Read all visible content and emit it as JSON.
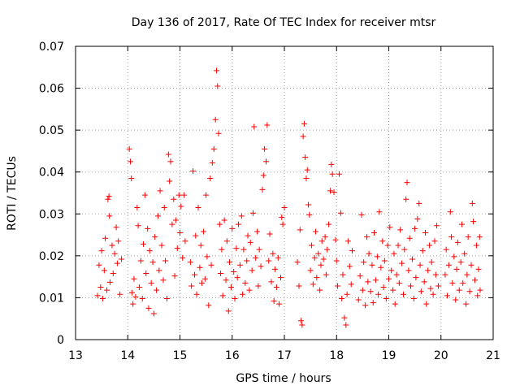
{
  "chart_data": {
    "type": "scatter",
    "title": "Day 136 of 2017, Rate Of TEC Index for receiver mtsr",
    "xlabel": "GPS time / hours",
    "ylabel": "ROTI / TECUs",
    "xlim": [
      13,
      21
    ],
    "ylim": [
      0,
      0.07
    ],
    "xticks": [
      13,
      14,
      15,
      16,
      17,
      18,
      19,
      20,
      21
    ],
    "xtick_labels": [
      "13",
      "14",
      "15",
      "16",
      "17",
      "18",
      "19",
      "20",
      "21"
    ],
    "yticks": [
      0,
      0.01,
      0.02,
      0.03,
      0.04,
      0.05,
      0.06,
      0.07
    ],
    "ytick_labels": [
      "0",
      "0.01",
      "0.02",
      "0.03",
      "0.04",
      "0.05",
      "0.06",
      "0.07"
    ],
    "grid": true,
    "marker": "+",
    "marker_color": "#ff0000",
    "series": [
      {
        "name": "ROTI",
        "points": [
          [
            13.42,
            0.0105
          ],
          [
            13.45,
            0.0178
          ],
          [
            13.48,
            0.0125
          ],
          [
            13.5,
            0.0212
          ],
          [
            13.52,
            0.0098
          ],
          [
            13.55,
            0.0165
          ],
          [
            13.57,
            0.0242
          ],
          [
            13.6,
            0.0118
          ],
          [
            13.62,
            0.0335
          ],
          [
            13.64,
            0.0342
          ],
          [
            13.65,
            0.0295
          ],
          [
            13.66,
            0.0137
          ],
          [
            13.7,
            0.0225
          ],
          [
            13.72,
            0.0158
          ],
          [
            13.75,
            0.0205
          ],
          [
            13.78,
            0.0268
          ],
          [
            13.8,
            0.0182
          ],
          [
            13.82,
            0.0235
          ],
          [
            13.85,
            0.0108
          ],
          [
            13.88,
            0.0192
          ],
          [
            14.03,
            0.0455
          ],
          [
            14.05,
            0.0425
          ],
          [
            14.07,
            0.0385
          ],
          [
            14.08,
            0.0112
          ],
          [
            14.1,
            0.0085
          ],
          [
            14.12,
            0.0145
          ],
          [
            14.15,
            0.0102
          ],
          [
            14.18,
            0.0315
          ],
          [
            14.2,
            0.0272
          ],
          [
            14.22,
            0.0125
          ],
          [
            14.25,
            0.0188
          ],
          [
            14.28,
            0.0098
          ],
          [
            14.3,
            0.0228
          ],
          [
            14.33,
            0.0345
          ],
          [
            14.35,
            0.0158
          ],
          [
            14.38,
            0.0265
          ],
          [
            14.4,
            0.0075
          ],
          [
            14.42,
            0.0212
          ],
          [
            14.45,
            0.0135
          ],
          [
            14.48,
            0.0185
          ],
          [
            14.5,
            0.0062
          ],
          [
            14.52,
            0.0245
          ],
          [
            14.55,
            0.0118
          ],
          [
            14.58,
            0.0295
          ],
          [
            14.6,
            0.0165
          ],
          [
            14.62,
            0.0355
          ],
          [
            14.65,
            0.0225
          ],
          [
            14.68,
            0.0142
          ],
          [
            14.7,
            0.0315
          ],
          [
            14.72,
            0.0188
          ],
          [
            14.75,
            0.0098
          ],
          [
            14.78,
            0.0442
          ],
          [
            14.8,
            0.0378
          ],
          [
            14.82,
            0.0425
          ],
          [
            14.85,
            0.0275
          ],
          [
            14.88,
            0.0335
          ],
          [
            14.9,
            0.0152
          ],
          [
            14.92,
            0.0285
          ],
          [
            14.95,
            0.0218
          ],
          [
            14.98,
            0.0345
          ],
          [
            15.0,
            0.0255
          ],
          [
            15.02,
            0.0318
          ],
          [
            15.05,
            0.0195
          ],
          [
            15.08,
            0.0345
          ],
          [
            15.1,
            0.0235
          ],
          [
            15.2,
            0.0185
          ],
          [
            15.22,
            0.0128
          ],
          [
            15.25,
            0.0402
          ],
          [
            15.28,
            0.0155
          ],
          [
            15.3,
            0.0248
          ],
          [
            15.32,
            0.0108
          ],
          [
            15.35,
            0.0315
          ],
          [
            15.38,
            0.0172
          ],
          [
            15.4,
            0.0225
          ],
          [
            15.42,
            0.0135
          ],
          [
            15.45,
            0.0258
          ],
          [
            15.48,
            0.0145
          ],
          [
            15.5,
            0.0345
          ],
          [
            15.52,
            0.0198
          ],
          [
            15.55,
            0.0082
          ],
          [
            15.58,
            0.0385
          ],
          [
            15.6,
            0.0178
          ],
          [
            15.62,
            0.0422
          ],
          [
            15.65,
            0.0455
          ],
          [
            15.68,
            0.0525
          ],
          [
            15.7,
            0.0642
          ],
          [
            15.72,
            0.0605
          ],
          [
            15.74,
            0.0492
          ],
          [
            15.76,
            0.0275
          ],
          [
            15.78,
            0.0158
          ],
          [
            15.8,
            0.0215
          ],
          [
            15.82,
            0.0105
          ],
          [
            15.85,
            0.0285
          ],
          [
            15.88,
            0.0142
          ],
          [
            15.9,
            0.0235
          ],
          [
            15.93,
            0.0068
          ],
          [
            15.95,
            0.0185
          ],
          [
            15.98,
            0.0125
          ],
          [
            16.0,
            0.0265
          ],
          [
            16.03,
            0.0162
          ],
          [
            16.05,
            0.0098
          ],
          [
            16.08,
            0.0218
          ],
          [
            16.1,
            0.0148
          ],
          [
            16.12,
            0.0275
          ],
          [
            16.15,
            0.0178
          ],
          [
            16.18,
            0.0295
          ],
          [
            16.2,
            0.0108
          ],
          [
            16.22,
            0.0215
          ],
          [
            16.25,
            0.0135
          ],
          [
            16.28,
            0.0188
          ],
          [
            16.3,
            0.0248
          ],
          [
            16.33,
            0.0118
          ],
          [
            16.35,
            0.0232
          ],
          [
            16.38,
            0.0165
          ],
          [
            16.4,
            0.0302
          ],
          [
            16.42,
            0.0508
          ],
          [
            16.45,
            0.0195
          ],
          [
            16.48,
            0.0258
          ],
          [
            16.5,
            0.0128
          ],
          [
            16.52,
            0.0215
          ],
          [
            16.55,
            0.0175
          ],
          [
            16.58,
            0.0358
          ],
          [
            16.6,
            0.0392
          ],
          [
            16.62,
            0.0455
          ],
          [
            16.65,
            0.0425
          ],
          [
            16.67,
            0.0512
          ],
          [
            16.7,
            0.0188
          ],
          [
            16.72,
            0.0252
          ],
          [
            16.75,
            0.0138
          ],
          [
            16.78,
            0.0205
          ],
          [
            16.8,
            0.0092
          ],
          [
            16.82,
            0.0168
          ],
          [
            16.85,
            0.0125
          ],
          [
            16.88,
            0.0195
          ],
          [
            16.9,
            0.0085
          ],
          [
            16.93,
            0.0148
          ],
          [
            16.95,
            0.0292
          ],
          [
            16.97,
            0.0275
          ],
          [
            17.0,
            0.0315
          ],
          [
            17.25,
            0.0185
          ],
          [
            17.28,
            0.0128
          ],
          [
            17.3,
            0.0262
          ],
          [
            17.32,
            0.0045
          ],
          [
            17.34,
            0.0035
          ],
          [
            17.36,
            0.0485
          ],
          [
            17.38,
            0.0515
          ],
          [
            17.4,
            0.0435
          ],
          [
            17.42,
            0.0385
          ],
          [
            17.44,
            0.0405
          ],
          [
            17.46,
            0.0322
          ],
          [
            17.48,
            0.0298
          ],
          [
            17.5,
            0.0165
          ],
          [
            17.52,
            0.0225
          ],
          [
            17.55,
            0.0132
          ],
          [
            17.58,
            0.0195
          ],
          [
            17.6,
            0.0258
          ],
          [
            17.62,
            0.0148
          ],
          [
            17.65,
            0.0205
          ],
          [
            17.68,
            0.0118
          ],
          [
            17.7,
            0.0178
          ],
          [
            17.72,
            0.0235
          ],
          [
            17.75,
            0.0192
          ],
          [
            17.78,
            0.0245
          ],
          [
            17.8,
            0.0155
          ],
          [
            17.82,
            0.0215
          ],
          [
            17.85,
            0.0275
          ],
          [
            17.88,
            0.0355
          ],
          [
            17.9,
            0.0418
          ],
          [
            17.92,
            0.0395
          ],
          [
            17.95,
            0.0352
          ],
          [
            17.98,
            0.0238
          ],
          [
            18.0,
            0.0188
          ],
          [
            18.02,
            0.0128
          ],
          [
            18.05,
            0.0395
          ],
          [
            18.08,
            0.0302
          ],
          [
            18.1,
            0.0098
          ],
          [
            18.12,
            0.0155
          ],
          [
            18.15,
            0.0052
          ],
          [
            18.18,
            0.0035
          ],
          [
            18.2,
            0.0108
          ],
          [
            18.22,
            0.0235
          ],
          [
            18.25,
            0.0175
          ],
          [
            18.28,
            0.0132
          ],
          [
            18.3,
            0.0212
          ],
          [
            18.42,
            0.0095
          ],
          [
            18.45,
            0.0152
          ],
          [
            18.48,
            0.0298
          ],
          [
            18.5,
            0.0118
          ],
          [
            18.52,
            0.0185
          ],
          [
            18.55,
            0.0082
          ],
          [
            18.58,
            0.0245
          ],
          [
            18.6,
            0.0138
          ],
          [
            18.62,
            0.0205
          ],
          [
            18.65,
            0.0115
          ],
          [
            18.68,
            0.0178
          ],
          [
            18.7,
            0.0088
          ],
          [
            18.72,
            0.0255
          ],
          [
            18.75,
            0.0142
          ],
          [
            18.78,
            0.0198
          ],
          [
            18.8,
            0.0108
          ],
          [
            18.82,
            0.0305
          ],
          [
            18.85,
            0.0172
          ],
          [
            18.88,
            0.0235
          ],
          [
            18.9,
            0.0125
          ],
          [
            18.92,
            0.0188
          ],
          [
            18.95,
            0.0098
          ],
          [
            18.98,
            0.0225
          ],
          [
            19.0,
            0.0145
          ],
          [
            19.02,
            0.0268
          ],
          [
            19.05,
            0.0165
          ],
          [
            19.08,
            0.0118
          ],
          [
            19.1,
            0.0205
          ],
          [
            19.12,
            0.0085
          ],
          [
            19.15,
            0.0155
          ],
          [
            19.18,
            0.0225
          ],
          [
            19.2,
            0.0135
          ],
          [
            19.22,
            0.0262
          ],
          [
            19.25,
            0.0182
          ],
          [
            19.28,
            0.0108
          ],
          [
            19.3,
            0.0215
          ],
          [
            19.33,
            0.0335
          ],
          [
            19.35,
            0.0375
          ],
          [
            19.38,
            0.0165
          ],
          [
            19.4,
            0.0242
          ],
          [
            19.42,
            0.0128
          ],
          [
            19.45,
            0.0192
          ],
          [
            19.48,
            0.0098
          ],
          [
            19.5,
            0.0265
          ],
          [
            19.52,
            0.0148
          ],
          [
            19.55,
            0.0288
          ],
          [
            19.58,
            0.0325
          ],
          [
            19.6,
            0.0178
          ],
          [
            19.62,
            0.0115
          ],
          [
            19.65,
            0.0212
          ],
          [
            19.68,
            0.0138
          ],
          [
            19.7,
            0.0255
          ],
          [
            19.72,
            0.0085
          ],
          [
            19.75,
            0.0165
          ],
          [
            19.78,
            0.0225
          ],
          [
            19.8,
            0.0122
          ],
          [
            19.82,
            0.0185
          ],
          [
            19.85,
            0.0108
          ],
          [
            19.88,
            0.0235
          ],
          [
            19.9,
            0.0155
          ],
          [
            19.92,
            0.0272
          ],
          [
            19.95,
            0.0128
          ],
          [
            20.08,
            0.0155
          ],
          [
            20.1,
            0.0215
          ],
          [
            20.12,
            0.0105
          ],
          [
            20.15,
            0.0178
          ],
          [
            20.18,
            0.0305
          ],
          [
            20.2,
            0.0245
          ],
          [
            20.22,
            0.0135
          ],
          [
            20.25,
            0.0198
          ],
          [
            20.28,
            0.0095
          ],
          [
            20.3,
            0.0168
          ],
          [
            20.32,
            0.0232
          ],
          [
            20.35,
            0.0118
          ],
          [
            20.38,
            0.0185
          ],
          [
            20.4,
            0.0275
          ],
          [
            20.42,
            0.0135
          ],
          [
            20.45,
            0.0205
          ],
          [
            20.48,
            0.0085
          ],
          [
            20.5,
            0.0155
          ],
          [
            20.52,
            0.0245
          ],
          [
            20.55,
            0.0115
          ],
          [
            20.58,
            0.0178
          ],
          [
            20.6,
            0.0325
          ],
          [
            20.62,
            0.0282
          ],
          [
            20.65,
            0.0142
          ],
          [
            20.68,
            0.0225
          ],
          [
            20.7,
            0.0105
          ],
          [
            20.72,
            0.0168
          ],
          [
            20.74,
            0.0245
          ],
          [
            20.75,
            0.0118
          ]
        ]
      }
    ]
  }
}
